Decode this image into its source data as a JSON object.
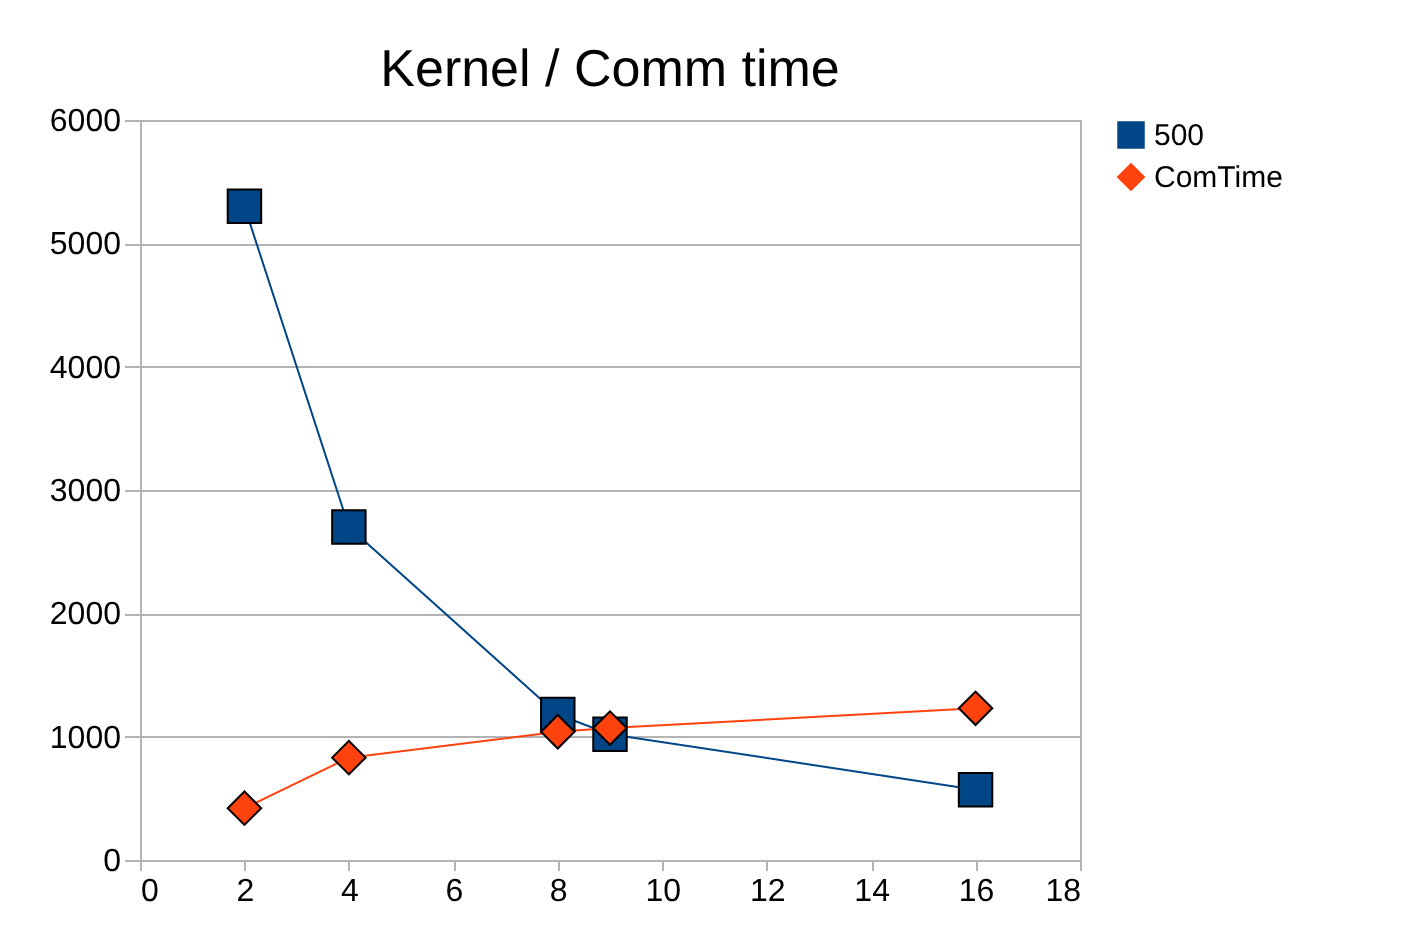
{
  "chart_data": {
    "type": "line",
    "title": "Kernel / Comm time",
    "x": [
      2,
      4,
      8,
      9,
      16
    ],
    "series": [
      {
        "name": "500",
        "color": "#004586",
        "marker": "square",
        "values": [
          5300,
          2700,
          1180,
          1020,
          570
        ]
      },
      {
        "name": "ComTime",
        "color": "#ff420e",
        "marker": "diamond",
        "values": [
          420,
          830,
          1040,
          1070,
          1230
        ]
      }
    ],
    "xlim": [
      0,
      18
    ],
    "xticks": [
      0,
      2,
      4,
      6,
      8,
      10,
      12,
      14,
      16,
      18
    ],
    "ylim": [
      0,
      6000
    ],
    "yticks": [
      0,
      1000,
      2000,
      3000,
      4000,
      5000,
      6000
    ],
    "grid": "y",
    "legend": "right"
  }
}
